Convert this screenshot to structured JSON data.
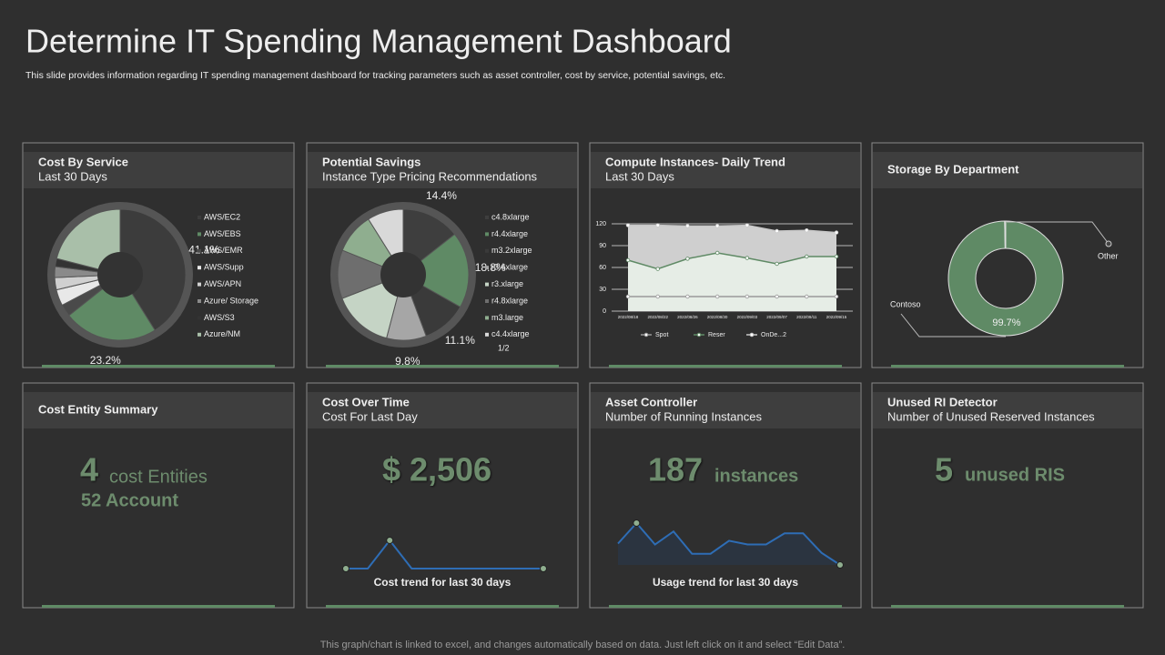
{
  "header": {
    "title": "Determine IT Spending Management Dashboard",
    "subtitle": "This slide provides information regarding IT spending management dashboard for tracking parameters such as asset controller, cost by service, potential savings, etc."
  },
  "footer": "This graph/chart is linked to excel,  and changes automatically based on data. Just left click on it and select “Edit Data”.",
  "cards": [
    {
      "title": "Cost By Service",
      "subtitle": "Last 30 Days"
    },
    {
      "title": "Potential Savings",
      "subtitle": "Instance Type Pricing Recommendations"
    },
    {
      "title": "Compute Instances- Daily Trend",
      "subtitle": "Last 30 Days"
    },
    {
      "title": "Storage By Department"
    },
    {
      "title": "Cost Entity Summary",
      "stat": "4",
      "stat_unit": "cost Entities",
      "stat_line2": "52 Account"
    },
    {
      "title": "Cost Over Time",
      "subtitle": "Cost For Last Day",
      "stat": "$ 2,506",
      "caption": "Cost trend for last 30 days"
    },
    {
      "title": "Asset Controller",
      "subtitle": "Number of Running Instances",
      "stat": "187",
      "stat_unit": "instances",
      "caption": "Usage trend for last 30 days"
    },
    {
      "title": "Unused RI Detector",
      "subtitle": "Number of Unused Reserved Instances",
      "stat": "5",
      "stat_unit": "unused RIS"
    }
  ],
  "chart_data": [
    {
      "type": "pie",
      "categories": [
        "AWS/EC2",
        "AWS/EBS",
        "AWS/EMR",
        "AWS/Supp",
        "AWS/APN",
        "Azure/ Storage",
        "AWS/S3",
        "Azure/NM"
      ],
      "values": [
        41.1,
        23.2,
        3,
        4,
        3,
        2.7,
        2,
        21
      ],
      "value_labels": [
        "41.1%",
        "23.2%",
        null,
        null,
        null,
        null,
        null,
        null
      ],
      "colors": [
        "#3c3c3c",
        "#5f8a65",
        "#4a4a4a",
        "#e8e8e8",
        "#d0d0d0",
        "#8a8a8a",
        "#333333",
        "#a9bfa9"
      ]
    },
    {
      "type": "pie",
      "categories": [
        "c4.8xlarge",
        "r4.4xlarge",
        "m3.2xlarge",
        "r3.4xlarge",
        "r3.xlarge",
        "r4.8xlarge",
        "m3.large",
        "c4.4xlarge"
      ],
      "values": [
        14.4,
        18.8,
        11.1,
        9.8,
        15,
        12,
        10,
        8.9
      ],
      "value_labels": [
        "14.4%",
        "18.8%",
        "11.1%",
        "9.8%",
        null,
        null,
        null,
        null
      ],
      "colors": [
        "#3e3e3e",
        "#5f8a65",
        "#3a3a3a",
        "#a6a6a6",
        "#c5d4c5",
        "#6e6e6e",
        "#8fae8f",
        "#d9d9d9"
      ],
      "legend_page": "1/2"
    },
    {
      "type": "area",
      "x": [
        "2022/08/18",
        "2022/08/22",
        "2022/08/26",
        "2022/08/30",
        "2022/09/03",
        "2022/09/07",
        "2022/09/11",
        "2022/09/15"
      ],
      "series": [
        {
          "name": "Spot",
          "color": "#9a9a9a",
          "area_color": "#e6ede6",
          "values": [
            20,
            20,
            20,
            20,
            20,
            20,
            20,
            20
          ]
        },
        {
          "name": "Reser",
          "color": "#5f8a65",
          "area_color": "#e6ede6",
          "values": [
            70,
            58,
            72,
            80,
            73,
            65,
            75,
            75
          ]
        },
        {
          "name": "OnDe...2",
          "color": "#c8c8c8",
          "area_color": "#cfcfcf",
          "values": [
            118,
            118,
            117,
            117,
            118,
            110,
            111,
            108
          ]
        }
      ],
      "ylim": [
        0,
        120
      ],
      "yticks": [
        0,
        30,
        60,
        90,
        120
      ],
      "grid": true
    },
    {
      "type": "donut",
      "categories": [
        "Contoso",
        "Other"
      ],
      "values": [
        99.7,
        0.3
      ],
      "value_labels": [
        "99.7%",
        null
      ],
      "colors": [
        "#5f8a65",
        "#b0b0b0"
      ]
    },
    {
      "type": "sparkline",
      "values": [
        0,
        0,
        1,
        0,
        0,
        0,
        0,
        0,
        0,
        0
      ],
      "color": "#2e6db5",
      "start_marker": true
    },
    {
      "type": "sparkline",
      "values": [
        25,
        47,
        24,
        38,
        14,
        14,
        28,
        24,
        24,
        36,
        36,
        15,
        2
      ],
      "color": "#2e6db5",
      "area_color": "#2b3440",
      "start_marker": false
    }
  ]
}
